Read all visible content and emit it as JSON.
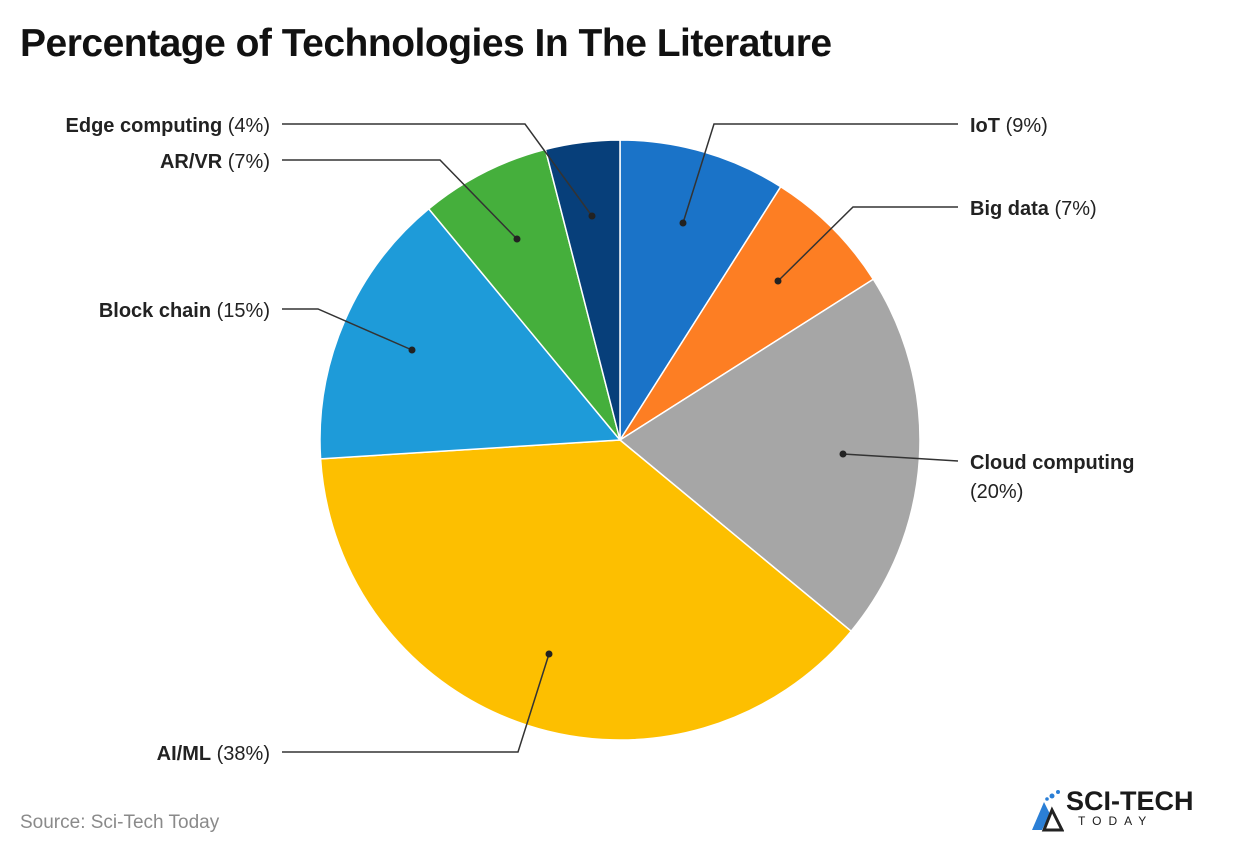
{
  "title": "Percentage of Technologies In The Literature",
  "source": "Source: Sci-Tech Today",
  "logo": {
    "line1": "SCI-TECH",
    "line2": "TODAY"
  },
  "chart_data": {
    "type": "pie",
    "title": "Percentage of Technologies In The Literature",
    "start": "top, clockwise",
    "slices": [
      {
        "label": "IoT",
        "value": 9,
        "pct_label": "(9%)",
        "color": "#1a73c8"
      },
      {
        "label": "Big data",
        "value": 7,
        "pct_label": "(7%)",
        "color": "#fd7e23"
      },
      {
        "label": "Cloud computing",
        "value": 20,
        "pct_label": "(20%)",
        "color": "#a6a6a6"
      },
      {
        "label": "AI/ML",
        "value": 38,
        "pct_label": "(38%)",
        "color": "#fdbf00"
      },
      {
        "label": "Block chain",
        "value": 15,
        "pct_label": "(15%)",
        "color": "#1e9bd9"
      },
      {
        "label": "AR/VR",
        "value": 7,
        "pct_label": "(7%)",
        "color": "#45af3c"
      },
      {
        "label": "Edge computing",
        "value": 4,
        "pct_label": "(4%)",
        "color": "#073f7a"
      }
    ]
  }
}
